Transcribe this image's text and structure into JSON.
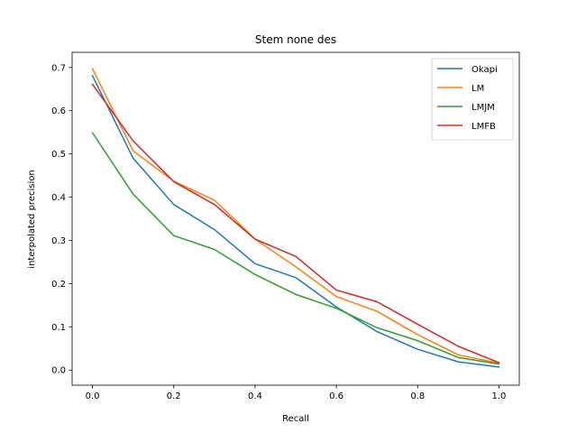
{
  "chart_data": {
    "type": "line",
    "title": "Stem none des",
    "xlabel": "Recall",
    "ylabel": "interpolated precision",
    "xlim": [
      -0.05,
      1.05
    ],
    "ylim": [
      -0.035,
      0.735
    ],
    "xticks": [
      0.0,
      0.2,
      0.4,
      0.6,
      0.8,
      1.0
    ],
    "xtick_labels": [
      "0.0",
      "0.2",
      "0.4",
      "0.6",
      "0.8",
      "1.0"
    ],
    "yticks": [
      0.0,
      0.1,
      0.2,
      0.3,
      0.4,
      0.5,
      0.6,
      0.7
    ],
    "ytick_labels": [
      "0.0",
      "0.1",
      "0.2",
      "0.3",
      "0.4",
      "0.5",
      "0.6",
      "0.7"
    ],
    "grid": false,
    "legend_position": "top-right",
    "x": [
      0.0,
      0.1,
      0.2,
      0.3,
      0.4,
      0.5,
      0.6,
      0.7,
      0.8,
      0.9,
      1.0
    ],
    "series": [
      {
        "name": "Okapi",
        "color": "#1f77b4",
        "values": [
          0.681,
          0.49,
          0.383,
          0.325,
          0.246,
          0.214,
          0.146,
          0.089,
          0.048,
          0.019,
          0.007
        ]
      },
      {
        "name": "LM",
        "color": "#ff7f0e",
        "values": [
          0.697,
          0.507,
          0.437,
          0.393,
          0.303,
          0.239,
          0.17,
          0.136,
          0.082,
          0.035,
          0.016
        ]
      },
      {
        "name": "LMJM",
        "color": "#2ca02c",
        "values": [
          0.549,
          0.407,
          0.311,
          0.279,
          0.221,
          0.175,
          0.143,
          0.098,
          0.068,
          0.029,
          0.014
        ]
      },
      {
        "name": "LMFB",
        "color": "#d62728",
        "values": [
          0.661,
          0.53,
          0.436,
          0.383,
          0.303,
          0.263,
          0.185,
          0.158,
          0.106,
          0.055,
          0.017
        ]
      }
    ]
  }
}
